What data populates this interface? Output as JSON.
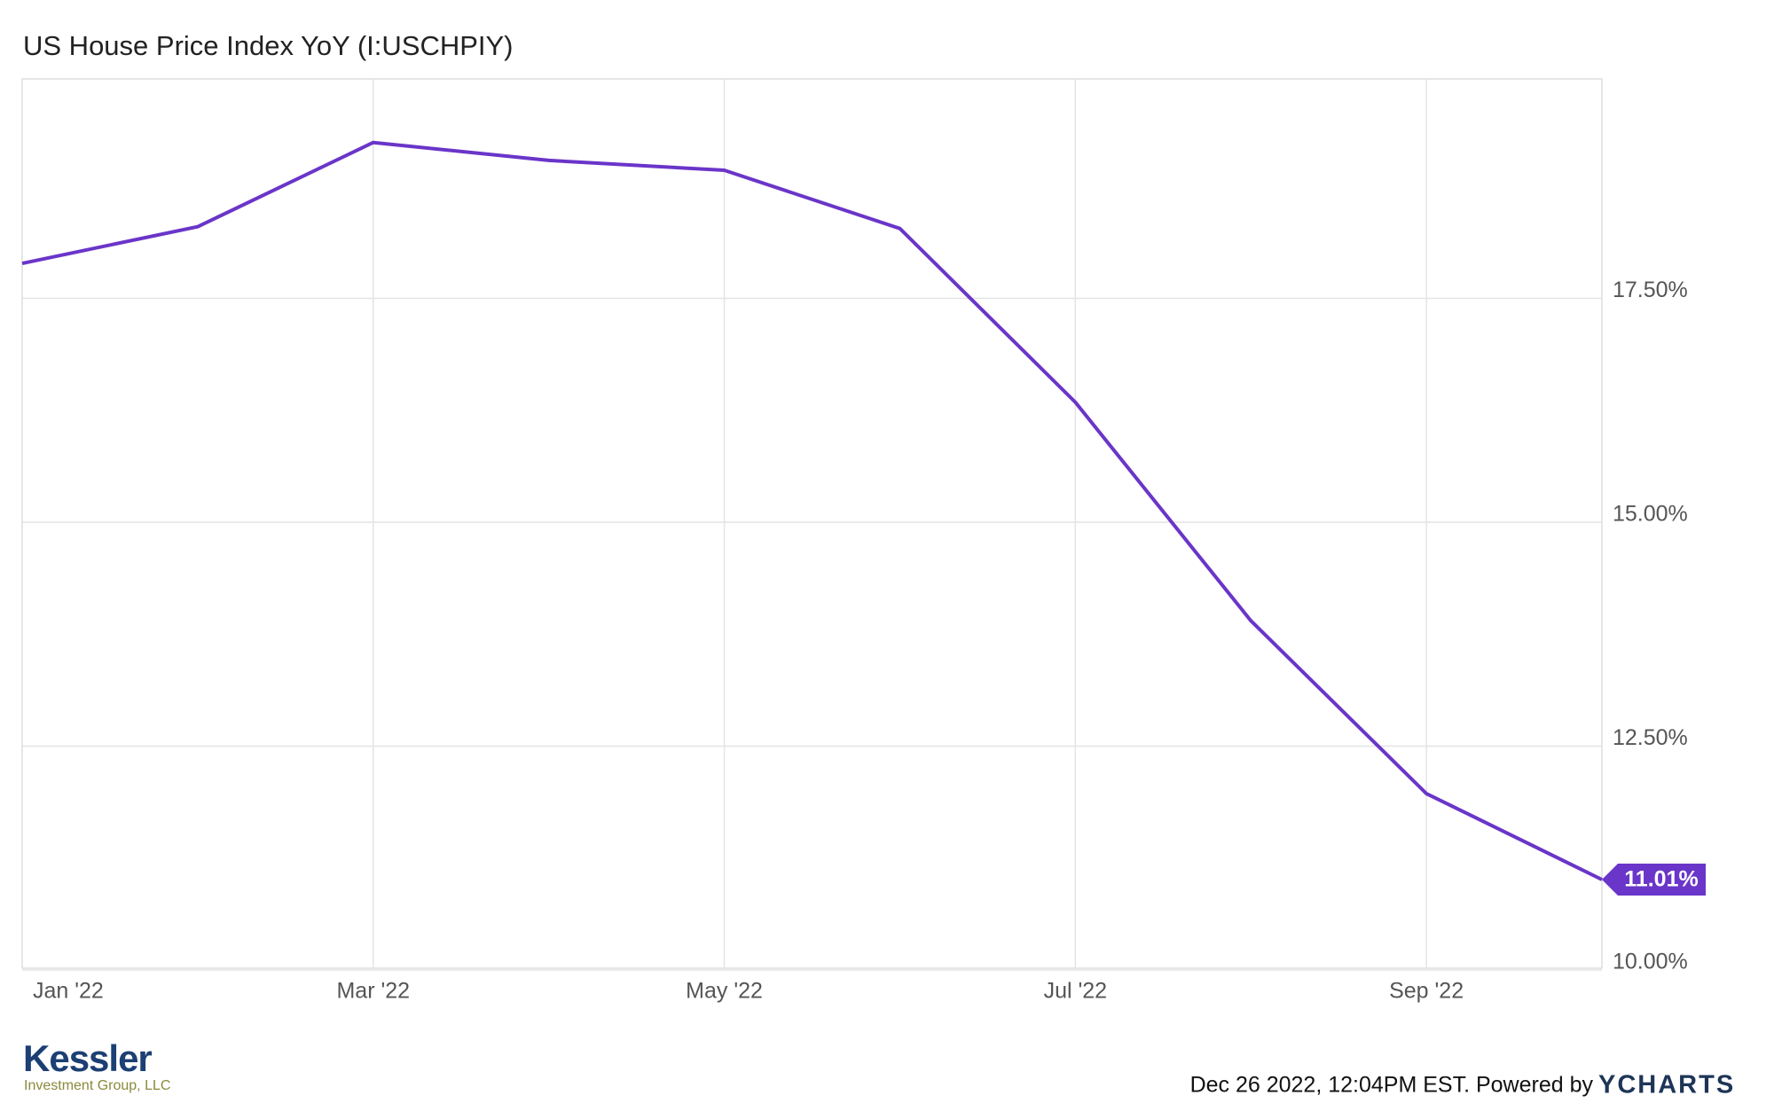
{
  "chart_data": {
    "type": "line",
    "title": "US House Price Index YoY (I:USCHPIY)",
    "categories": [
      "Jan '22",
      null,
      "Mar '22",
      null,
      "May '22",
      null,
      "Jul '22",
      null,
      "Sep '22",
      null
    ],
    "series": [
      {
        "name": "US House Price Index YoY",
        "color": "#6a35c9",
        "values": [
          17.89,
          18.3,
          19.24,
          19.04,
          18.93,
          18.28,
          16.34,
          13.9,
          11.97,
          11.01
        ],
        "value_labels": [
          null,
          null,
          null,
          null,
          null,
          null,
          null,
          null,
          null,
          "11.01%"
        ]
      }
    ],
    "ylim": [
      10,
      19.95
    ],
    "yticks": [
      {
        "value": 10,
        "label": "10.00%"
      },
      {
        "value": 12.5,
        "label": "12.50%"
      },
      {
        "value": 15,
        "label": "15.00%"
      },
      {
        "value": 17.5,
        "label": "17.50%"
      }
    ],
    "grid": true
  },
  "footer": {
    "brand": "Kessler",
    "brand_sub": "Investment Group, LLC",
    "timestamp": "Dec 26 2022, 12:04PM EST. Powered by",
    "source": "YCHARTS"
  }
}
